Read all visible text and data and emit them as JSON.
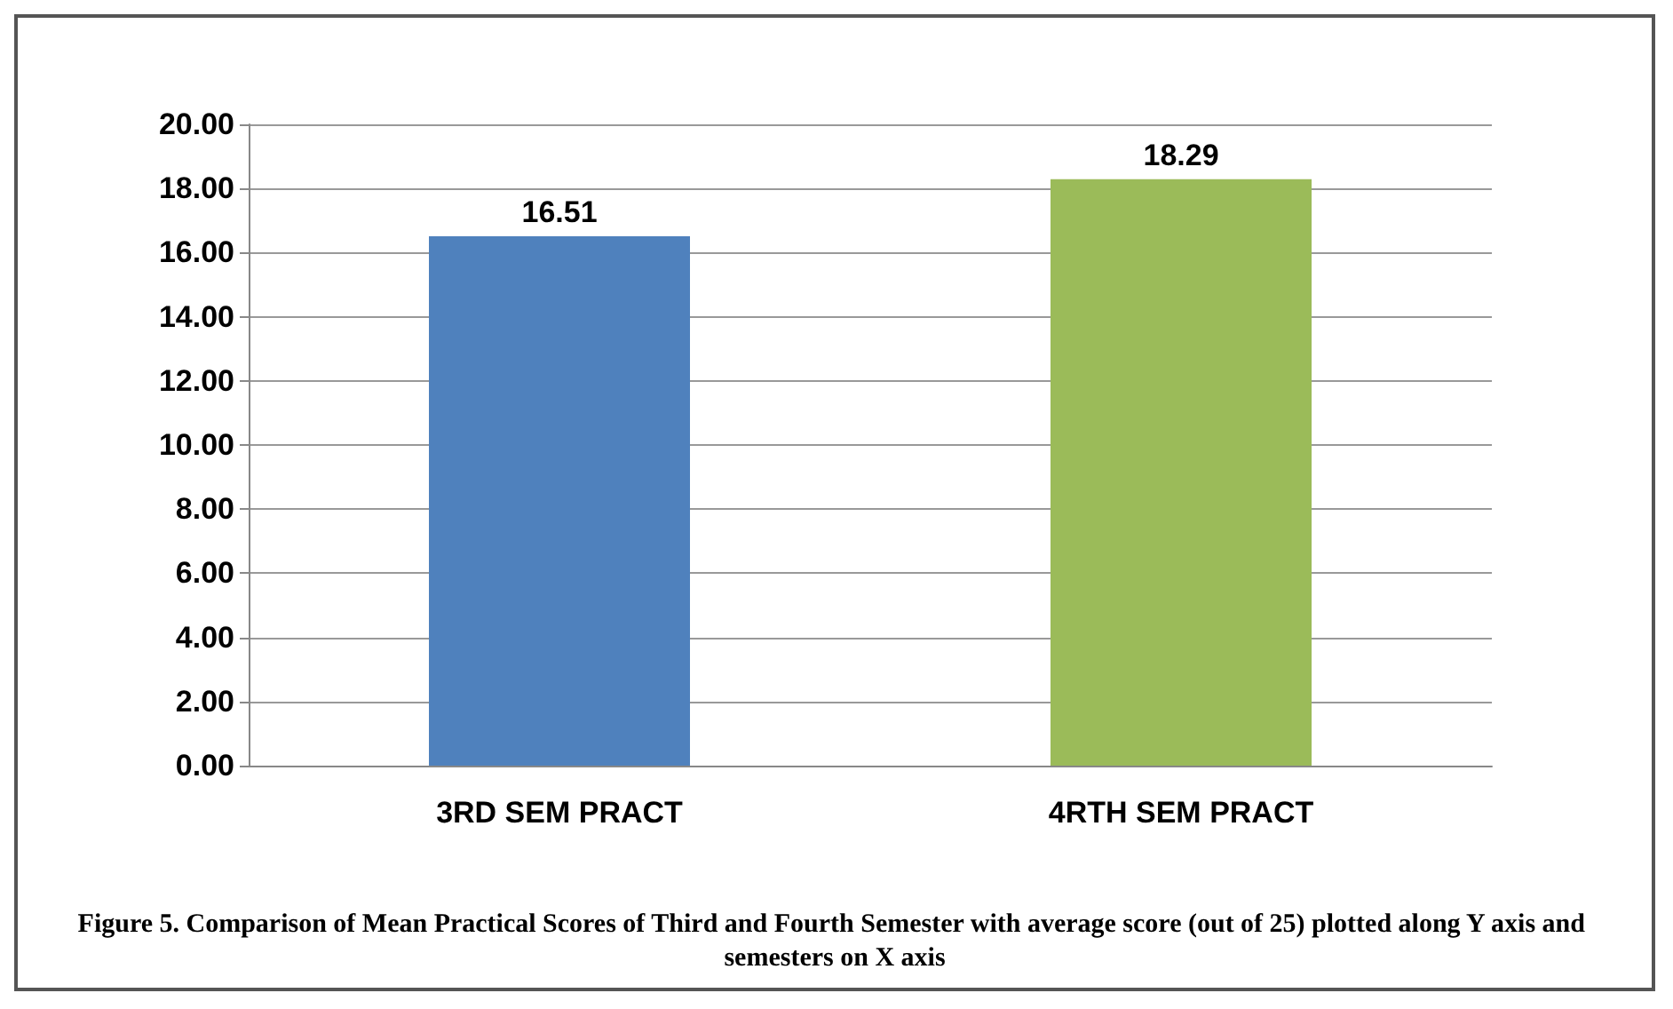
{
  "chart_data": {
    "type": "bar",
    "categories": [
      "3RD SEM PRACT",
      "4RTH SEM PRACT"
    ],
    "values": [
      16.51,
      18.29
    ],
    "colors": [
      "#4f81bd",
      "#9bbb59"
    ],
    "ylim": [
      0,
      20
    ],
    "yticks": [
      {
        "value": 0,
        "label": "0.00"
      },
      {
        "value": 2,
        "label": "2.00"
      },
      {
        "value": 4,
        "label": "4.00"
      },
      {
        "value": 6,
        "label": "6.00"
      },
      {
        "value": 8,
        "label": "8.00"
      },
      {
        "value": 10,
        "label": "10.00"
      },
      {
        "value": 12,
        "label": "12.00"
      },
      {
        "value": 14,
        "label": "14.00"
      },
      {
        "value": 16,
        "label": "16.00"
      },
      {
        "value": 18,
        "label": "18.00"
      },
      {
        "value": 20,
        "label": "20.00"
      }
    ],
    "grid": "y",
    "data_labels": true,
    "annotations": [
      "Figure 5. Comparison of Mean Practical Scores of Third and Fourth Semester with average score (out of 25) plotted along Y axis and semesters on X axis"
    ]
  }
}
